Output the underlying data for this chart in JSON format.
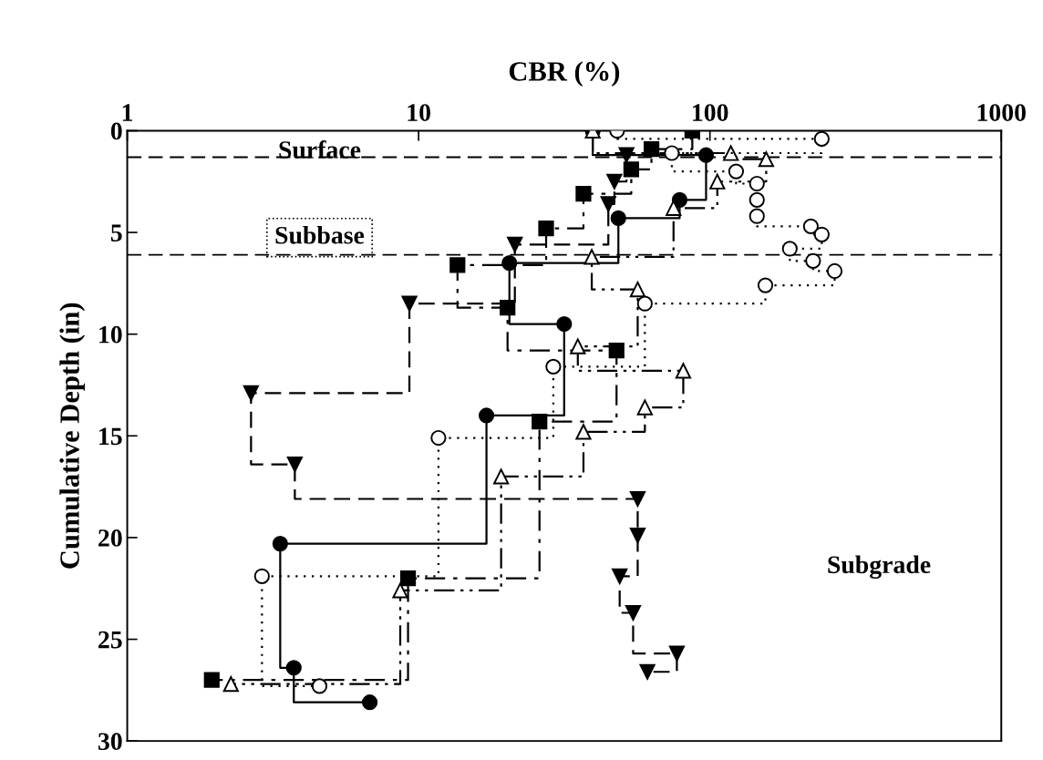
{
  "chart_data": {
    "type": "step",
    "xlabel": "CBR (%)",
    "ylabel": "Cumulative Depth (in)",
    "log": "x",
    "xlim": [
      1,
      1000
    ],
    "xticks": [
      1,
      10,
      100,
      1000
    ],
    "ylim": [
      30,
      0
    ],
    "yticks": [
      0,
      5,
      10,
      15,
      20,
      25,
      30
    ],
    "grid": false,
    "series": [
      {
        "color": "#000000",
        "marker": "square",
        "line_style": "dashdot",
        "x": [
          87,
          63,
          53.7,
          36.8,
          27.4,
          13.6,
          20.2,
          47.8,
          26,
          9.2,
          1.95
        ],
        "values": [
          0,
          0.9,
          1.9,
          3.1,
          4.8,
          6.6,
          8.7,
          10.8,
          14.3,
          22.0,
          27.0
        ]
      },
      {
        "color": "#000000",
        "marker": "circle",
        "line_style": "solid",
        "x": [
          39.6,
          97,
          78.7,
          48.5,
          20.5,
          31.6,
          17.1,
          3.35,
          3.73,
          6.8
        ],
        "values": [
          0,
          1.2,
          3.4,
          4.3,
          6.5,
          9.5,
          14.0,
          20.3,
          26.4,
          28.1
        ]
      },
      {
        "color": "#000000",
        "marker": "triangle_down",
        "line_style": "dashed",
        "x": [
          51.7,
          47,
          44.8,
          21.4,
          9.3,
          2.66,
          3.76,
          56.5,
          56.5,
          49,
          54.5,
          77,
          61
        ],
        "values": [
          1.2,
          2.5,
          3.6,
          5.6,
          8.5,
          12.9,
          16.4,
          18.1,
          19.9,
          21.9,
          23.7,
          25.7,
          26.6
        ]
      },
      {
        "color": "#000000",
        "marker": "triangle_open",
        "line_style": "dashdotdot",
        "x": [
          39.6,
          118,
          156,
          106,
          75,
          39.3,
          56.5,
          35.2,
          81,
          59.8,
          36.8,
          19.2,
          8.65,
          2.27
        ],
        "values": [
          0,
          1.1,
          1.4,
          2.5,
          3.8,
          6.2,
          7.8,
          10.6,
          11.8,
          13.6,
          14.8,
          17.0,
          22.6,
          27.2
        ]
      },
      {
        "color": "#000000",
        "marker": "circle_open",
        "line_style": "dotted",
        "x": [
          48,
          242,
          74,
          123,
          145,
          145,
          145,
          222,
          242,
          188,
          226,
          268,
          155,
          59.8,
          29,
          11.7,
          2.9,
          4.57
        ],
        "values": [
          0,
          0.4,
          1.1,
          2.0,
          2.6,
          3.4,
          4.2,
          4.7,
          5.1,
          5.8,
          6.4,
          6.9,
          7.6,
          8.5,
          11.6,
          15.1,
          21.9,
          27.3
        ]
      }
    ],
    "ref_lines": [
      {
        "axis": "y",
        "value": 1.3,
        "color": "#000000",
        "line_style": "dashed"
      },
      {
        "axis": "y",
        "value": 6.1,
        "color": "#000000",
        "line_style": "dashed"
      }
    ],
    "annotations": [
      "Surface",
      "Subbase",
      "Subgrade"
    ]
  }
}
